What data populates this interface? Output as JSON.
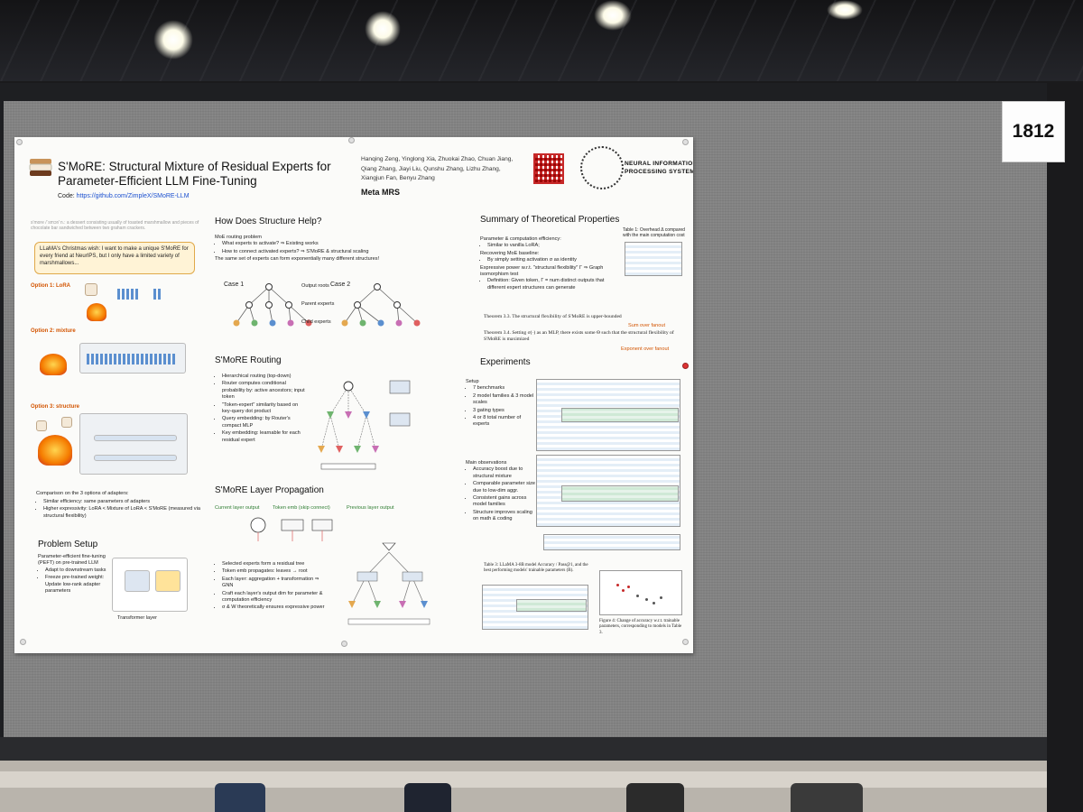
{
  "booth_number": "1812",
  "poster": {
    "title": "S'MoRE: Structural Mixture of Residual Experts for Parameter-Efficient LLM Fine-Tuning",
    "code_label": "Code:",
    "code_url": "https://github.com/ZimpleX/SMoRE-LLM",
    "authors": "Hanqing Zeng, Yinglong Xia, Zhuokai Zhao, Chuan Jiang, Qiang Zhang, Jiayi Liu, Qunshu Zhang, Lizhu Zhang, Xiangjun Fan, Benyu Zhang",
    "affiliations": "Meta  MRS",
    "venue": "NEURAL INFORMATION PROCESSING SYSTEMS",
    "definition": "s'more /ˈsmɔr/ n.: a dessert consisting usually of toasted marshmallow and pieces of chocolate bar sandwiched between two graham crackers.",
    "wish": "LLaMA's Christmas wish: I want to make a unique S'MoRE for every friend at NeurIPS, but I only have a limited variety of marshmallows...",
    "option1": "Option 1: LoRA",
    "option2": "Option 2: mixture",
    "option3": "Option 3: structure",
    "comparison": {
      "heading": "Comparison on the 3 options of adapters:",
      "items": [
        "Similar efficiency: same parameters of adapters",
        "Higher expressivity: LoRA < Mixture of LoRA < S'MoRE (measured via structural flexibility)"
      ]
    },
    "problem_setup": {
      "heading": "Problem Setup",
      "items": [
        "Parameter-efficient fine-tuning (PEFT) on pre-trained LLM",
        "Adapt to downstream tasks",
        "Freeze pre-trained weight: Update low-rank adapter parameters"
      ],
      "diagram_label": "Transformer layer"
    },
    "structure": {
      "heading": "How Does Structure Help?",
      "line1": "MoE routing problem",
      "items": [
        "What experts to activate? ⇒ Existing works",
        "How to connect activated experts? ⇒ S'MoRE & structural scaling"
      ],
      "line2": "The same set of experts can form exponentially many different structures!",
      "case1": "Case 1",
      "case2": "Case 2",
      "legend": [
        "Output roots",
        "Parent experts",
        "Child experts"
      ]
    },
    "routing": {
      "heading": "S'MoRE Routing",
      "items": [
        "Hierarchical routing (top-down)",
        "Router computes conditional probability by: active ancestors; input token",
        "\"Token-expert\" similarity based on key-query dot product",
        "Query embedding: by Router's compact MLP",
        "Key embedding: learnable for each residual expert"
      ]
    },
    "propagation": {
      "heading": "S'MoRE Layer Propagation",
      "labels": [
        "Current layer output",
        "Token emb (skip connect)",
        "Previous layer output"
      ],
      "items": [
        "Selected experts form a residual tree",
        "Token emb propagates: leaves → root",
        "Each layer: aggregation + transformation ⇒ GNN",
        "Craft each layer's output dim for parameter & computation efficiency",
        "σ & W theoretically ensures expressive power"
      ]
    },
    "theory": {
      "heading": "Summary of Theoretical Properties",
      "line1": "Parameter & computation efficiency:",
      "item1": "Similar to vanilla LoRA;",
      "line2": "Recovering MoE baseline:",
      "item2": "By simply setting activation σ as identity",
      "line3": "Expressive power w.r.t. \"structural flexibility\" Γ ⇒ Graph isomorphism test",
      "item3": "Definition: Given token, Γ = num distinct outputs that different expert structures can generate",
      "table_caption": "Table 1: Overhead Δ compared with the main computation cost",
      "note1": "Sum over fanout",
      "note2": "Exponent over fanout",
      "theorem1": "Theorem 3.3. The structural flexibility of S'MoRE is upper-bounded",
      "theorem2": "Theorem 3.4. Setting σ(·) as an MLP, there exists some Θ such that the structural flexibility of S'MoRE is maximized"
    },
    "experiments": {
      "heading": "Experiments",
      "setup": "Setup",
      "setup_items": [
        "7 benchmarks",
        "2 model families & 3 model scales",
        "3 gating types",
        "4 or 8 total number of experts"
      ],
      "main": "Main observations",
      "main_items": [
        "Accuracy boost due to structural mixture",
        "Comparable parameter size due to low-dim aggr.",
        "Consistent gains across model families",
        "Structure improves scaling on math & coding"
      ],
      "table_caption": "Table 3: LLaMA 3-8B model Accuracy / Pass@1, and the best performing models' trainable parameters (B).",
      "figure_caption": "Figure 4: Change of accuracy w.r.t. trainable parameters, corresponding to models in Table 3."
    }
  },
  "colors": {
    "accent": "#d35400",
    "poster_bg": "#fbfbf9",
    "board": "#838383"
  }
}
